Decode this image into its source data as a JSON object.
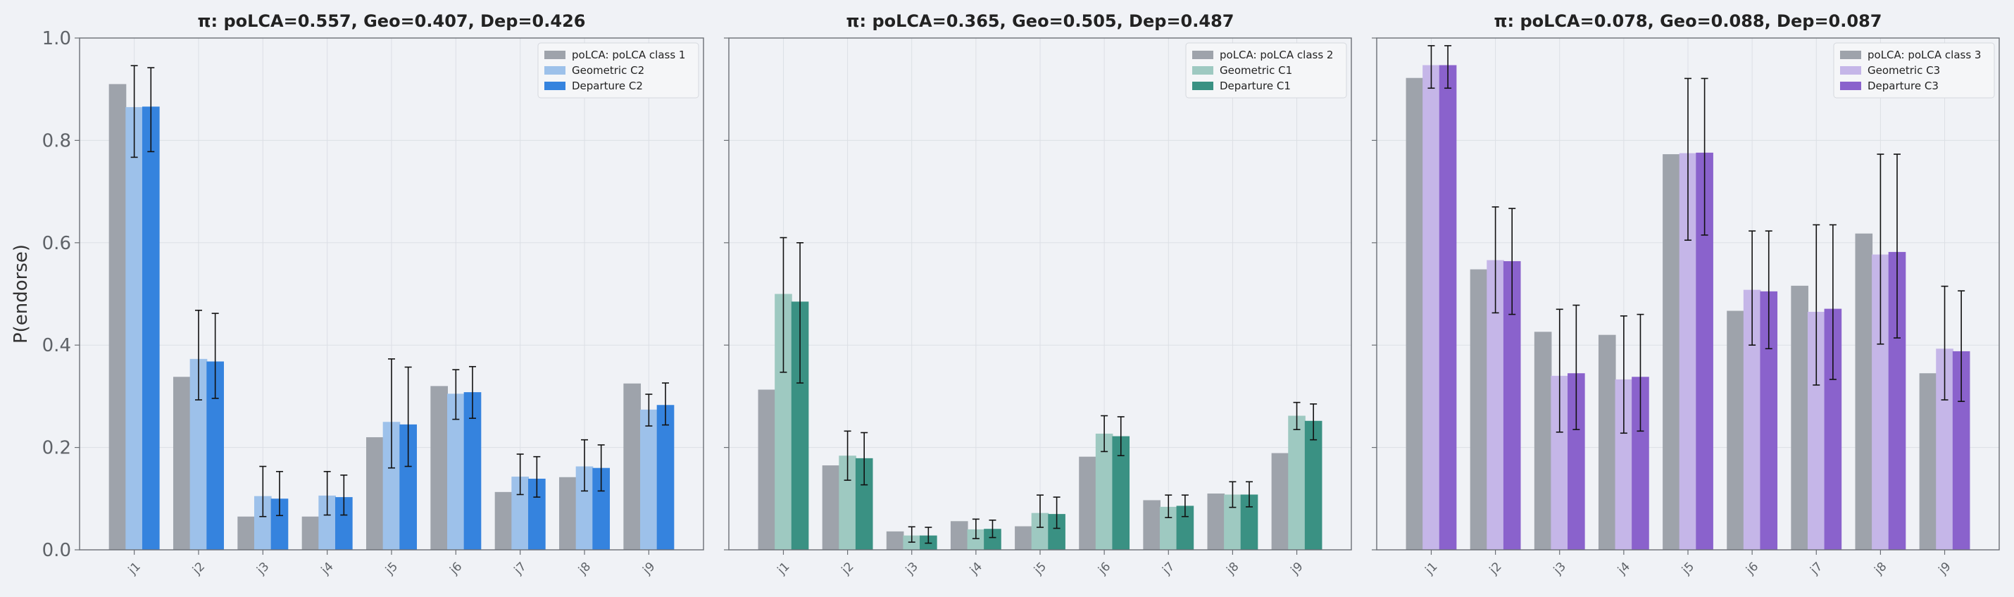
{
  "figure": {
    "ylabel": "P(endorse)",
    "yticks": [
      "0.0",
      "0.2",
      "0.4",
      "0.6",
      "0.8",
      "1.0"
    ]
  },
  "chart_data": [
    {
      "type": "bar",
      "title": "π: poLCA=0.557, Geo=0.407, Dep=0.426",
      "categories": [
        "j1",
        "j2",
        "j3",
        "j4",
        "j5",
        "j6",
        "j7",
        "j8",
        "j9"
      ],
      "ylim": [
        0,
        1
      ],
      "ylabel": "P(endorse)",
      "grid": true,
      "legend_position": "top-right",
      "series": [
        {
          "name": "poLCA: poLCA class 1",
          "color": "#9ea3ab",
          "values": [
            0.91,
            0.338,
            0.065,
            0.065,
            0.22,
            0.32,
            0.113,
            0.142,
            0.325
          ]
        },
        {
          "name": "Geometric C2",
          "color": "#9dc1ea",
          "values": [
            0.865,
            0.373,
            0.105,
            0.106,
            0.25,
            0.305,
            0.143,
            0.163,
            0.274
          ],
          "err_low": [
            0.767,
            0.293,
            0.065,
            0.068,
            0.16,
            0.255,
            0.108,
            0.115,
            0.242
          ],
          "err_high": [
            0.946,
            0.468,
            0.163,
            0.153,
            0.373,
            0.352,
            0.187,
            0.215,
            0.304
          ]
        },
        {
          "name": "Departure C2",
          "color": "#3583de",
          "values": [
            0.866,
            0.368,
            0.1,
            0.103,
            0.245,
            0.308,
            0.139,
            0.16,
            0.283
          ],
          "err_low": [
            0.778,
            0.296,
            0.067,
            0.068,
            0.163,
            0.257,
            0.103,
            0.115,
            0.244
          ],
          "err_high": [
            0.942,
            0.462,
            0.153,
            0.146,
            0.357,
            0.358,
            0.182,
            0.205,
            0.326
          ]
        }
      ]
    },
    {
      "type": "bar",
      "title": "π: poLCA=0.365, Geo=0.505, Dep=0.487",
      "categories": [
        "j1",
        "j2",
        "j3",
        "j4",
        "j5",
        "j6",
        "j7",
        "j8",
        "j9"
      ],
      "ylim": [
        0,
        1
      ],
      "grid": true,
      "legend_position": "top-right",
      "series": [
        {
          "name": "poLCA: poLCA class 2",
          "color": "#9ea3ab",
          "values": [
            0.313,
            0.165,
            0.036,
            0.056,
            0.046,
            0.182,
            0.097,
            0.11,
            0.189
          ]
        },
        {
          "name": "Geometric C1",
          "color": "#9ec9c1",
          "values": [
            0.5,
            0.184,
            0.028,
            0.04,
            0.072,
            0.227,
            0.084,
            0.108,
            0.262
          ],
          "err_low": [
            0.347,
            0.136,
            0.015,
            0.022,
            0.044,
            0.192,
            0.063,
            0.083,
            0.235
          ],
          "err_high": [
            0.61,
            0.232,
            0.045,
            0.06,
            0.107,
            0.262,
            0.107,
            0.133,
            0.288
          ]
        },
        {
          "name": "Departure C1",
          "color": "#3a9183",
          "values": [
            0.485,
            0.179,
            0.028,
            0.041,
            0.07,
            0.222,
            0.086,
            0.108,
            0.252
          ],
          "err_low": [
            0.326,
            0.127,
            0.013,
            0.024,
            0.042,
            0.184,
            0.065,
            0.084,
            0.215
          ],
          "err_high": [
            0.6,
            0.229,
            0.044,
            0.058,
            0.103,
            0.26,
            0.107,
            0.133,
            0.285
          ]
        }
      ]
    },
    {
      "type": "bar",
      "title": "π: poLCA=0.078, Geo=0.088, Dep=0.087",
      "categories": [
        "j1",
        "j2",
        "j3",
        "j4",
        "j5",
        "j6",
        "j7",
        "j8",
        "j9"
      ],
      "ylim": [
        0,
        1
      ],
      "grid": true,
      "legend_position": "top-right",
      "series": [
        {
          "name": "poLCA: poLCA class 3",
          "color": "#9ea3ab",
          "values": [
            0.922,
            0.548,
            0.426,
            0.42,
            0.773,
            0.467,
            0.516,
            0.618,
            0.345
          ]
        },
        {
          "name": "Geometric C3",
          "color": "#c5b6e8",
          "values": [
            0.947,
            0.566,
            0.34,
            0.333,
            0.775,
            0.508,
            0.465,
            0.577,
            0.393
          ],
          "err_low": [
            0.902,
            0.463,
            0.23,
            0.228,
            0.605,
            0.4,
            0.322,
            0.402,
            0.293
          ],
          "err_high": [
            0.985,
            0.67,
            0.47,
            0.457,
            0.921,
            0.623,
            0.635,
            0.773,
            0.515
          ]
        },
        {
          "name": "Departure C3",
          "color": "#8a62cc",
          "values": [
            0.947,
            0.564,
            0.345,
            0.338,
            0.776,
            0.505,
            0.471,
            0.582,
            0.388
          ],
          "err_low": [
            0.902,
            0.46,
            0.235,
            0.232,
            0.615,
            0.393,
            0.333,
            0.414,
            0.29
          ],
          "err_high": [
            0.985,
            0.667,
            0.478,
            0.46,
            0.921,
            0.623,
            0.635,
            0.773,
            0.506
          ]
        }
      ]
    }
  ]
}
